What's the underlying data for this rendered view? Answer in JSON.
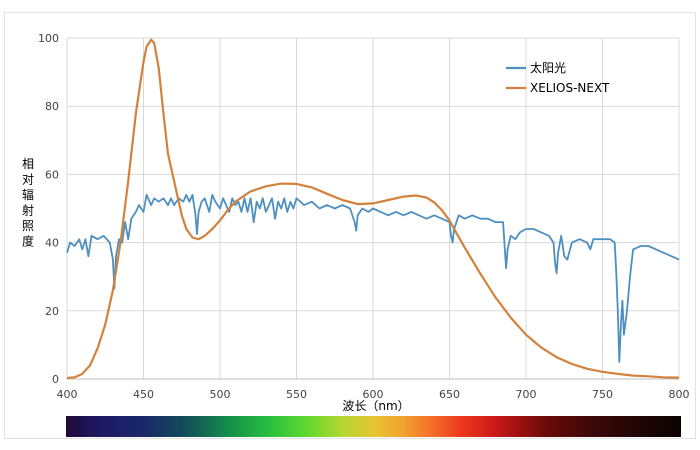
{
  "chart_data": {
    "type": "line",
    "xlabel": "波长（nm）",
    "ylabel": "相对辐射照度",
    "xlim": [
      400,
      800
    ],
    "ylim": [
      0,
      100
    ],
    "x_ticks": [
      "400",
      "450",
      "500",
      "550",
      "600",
      "650",
      "700",
      "750",
      "800"
    ],
    "y_ticks": [
      "0",
      "20",
      "40",
      "60",
      "80",
      "100"
    ],
    "grid": true,
    "legend_position": "top-right",
    "series": [
      {
        "name": "太阳光",
        "color": "#4e8fc0",
        "points": [
          [
            400,
            37
          ],
          [
            402,
            40
          ],
          [
            405,
            39
          ],
          [
            408,
            41
          ],
          [
            410,
            38
          ],
          [
            412,
            41
          ],
          [
            414,
            36
          ],
          [
            416,
            42
          ],
          [
            420,
            41
          ],
          [
            424,
            42
          ],
          [
            428,
            40
          ],
          [
            430,
            35
          ],
          [
            431,
            26.5
          ],
          [
            432,
            36
          ],
          [
            434,
            41
          ],
          [
            436,
            40
          ],
          [
            438,
            46
          ],
          [
            440,
            41
          ],
          [
            442,
            47
          ],
          [
            445,
            49
          ],
          [
            447,
            51
          ],
          [
            450,
            49
          ],
          [
            452,
            54
          ],
          [
            455,
            51
          ],
          [
            457,
            53
          ],
          [
            460,
            52
          ],
          [
            463,
            53
          ],
          [
            466,
            51
          ],
          [
            468,
            53
          ],
          [
            470,
            51
          ],
          [
            473,
            53
          ],
          [
            476,
            52
          ],
          [
            478,
            54
          ],
          [
            480,
            52
          ],
          [
            482,
            54
          ],
          [
            484,
            48
          ],
          [
            485,
            42.5
          ],
          [
            486,
            49
          ],
          [
            488,
            52
          ],
          [
            490,
            53
          ],
          [
            493,
            49
          ],
          [
            495,
            54
          ],
          [
            497,
            52
          ],
          [
            500,
            50
          ],
          [
            502,
            53
          ],
          [
            504,
            51
          ],
          [
            506,
            49
          ],
          [
            508,
            53
          ],
          [
            510,
            51
          ],
          [
            512,
            52
          ],
          [
            514,
            49
          ],
          [
            516,
            53
          ],
          [
            518,
            49
          ],
          [
            520,
            53
          ],
          [
            522,
            46
          ],
          [
            524,
            52
          ],
          [
            526,
            50
          ],
          [
            528,
            53
          ],
          [
            530,
            49
          ],
          [
            532,
            51
          ],
          [
            534,
            53
          ],
          [
            536,
            47
          ],
          [
            538,
            52
          ],
          [
            540,
            50
          ],
          [
            542,
            53
          ],
          [
            544,
            49
          ],
          [
            546,
            52
          ],
          [
            548,
            50
          ],
          [
            550,
            53
          ],
          [
            555,
            51
          ],
          [
            560,
            52
          ],
          [
            565,
            50
          ],
          [
            570,
            51
          ],
          [
            575,
            50
          ],
          [
            580,
            51
          ],
          [
            585,
            50
          ],
          [
            588,
            46
          ],
          [
            589,
            43.5
          ],
          [
            590,
            48
          ],
          [
            593,
            50
          ],
          [
            597,
            49
          ],
          [
            600,
            50
          ],
          [
            605,
            49
          ],
          [
            610,
            48
          ],
          [
            615,
            49
          ],
          [
            620,
            48
          ],
          [
            625,
            49
          ],
          [
            630,
            48
          ],
          [
            635,
            47
          ],
          [
            640,
            48
          ],
          [
            645,
            47
          ],
          [
            650,
            46
          ],
          [
            651,
            42
          ],
          [
            652,
            40
          ],
          [
            653,
            44
          ],
          [
            656,
            48
          ],
          [
            660,
            47
          ],
          [
            665,
            48
          ],
          [
            670,
            47
          ],
          [
            675,
            47
          ],
          [
            680,
            46
          ],
          [
            685,
            46
          ],
          [
            686,
            39
          ],
          [
            687,
            32.5
          ],
          [
            688,
            38
          ],
          [
            690,
            42
          ],
          [
            693,
            41
          ],
          [
            696,
            43
          ],
          [
            700,
            44
          ],
          [
            705,
            44
          ],
          [
            710,
            43
          ],
          [
            715,
            42
          ],
          [
            718,
            40
          ],
          [
            719,
            34
          ],
          [
            720,
            31
          ],
          [
            721,
            37
          ],
          [
            723,
            42
          ],
          [
            725,
            36
          ],
          [
            727,
            35
          ],
          [
            730,
            40
          ],
          [
            735,
            41
          ],
          [
            740,
            40
          ],
          [
            742,
            38
          ],
          [
            744,
            41
          ],
          [
            750,
            41
          ],
          [
            755,
            41
          ],
          [
            758,
            40
          ],
          [
            759,
            31
          ],
          [
            760,
            20
          ],
          [
            761,
            5
          ],
          [
            762,
            16
          ],
          [
            763,
            23
          ],
          [
            764,
            13
          ],
          [
            766,
            20
          ],
          [
            768,
            30
          ],
          [
            770,
            38
          ],
          [
            775,
            39
          ],
          [
            780,
            39
          ],
          [
            785,
            38
          ],
          [
            790,
            37
          ],
          [
            795,
            36
          ],
          [
            800,
            35
          ]
        ]
      },
      {
        "name": "XELIOS-NEXT",
        "color": "#d2823c",
        "points": [
          [
            400,
            0.3
          ],
          [
            405,
            0.5
          ],
          [
            410,
            1.5
          ],
          [
            415,
            4
          ],
          [
            420,
            9
          ],
          [
            425,
            16
          ],
          [
            430,
            26
          ],
          [
            435,
            40
          ],
          [
            440,
            58
          ],
          [
            445,
            78
          ],
          [
            450,
            93
          ],
          [
            452,
            97.5
          ],
          [
            455,
            99.5
          ],
          [
            457,
            98.5
          ],
          [
            460,
            91
          ],
          [
            463,
            78
          ],
          [
            466,
            66
          ],
          [
            469,
            60
          ],
          [
            472,
            54
          ],
          [
            475,
            48
          ],
          [
            478,
            44
          ],
          [
            482,
            41.5
          ],
          [
            486,
            41
          ],
          [
            490,
            42
          ],
          [
            495,
            44
          ],
          [
            500,
            46.5
          ],
          [
            505,
            49.5
          ],
          [
            510,
            52
          ],
          [
            520,
            55
          ],
          [
            530,
            56.5
          ],
          [
            540,
            57.3
          ],
          [
            550,
            57.2
          ],
          [
            560,
            56.2
          ],
          [
            570,
            54.3
          ],
          [
            580,
            52.5
          ],
          [
            590,
            51.3
          ],
          [
            600,
            51.5
          ],
          [
            610,
            52.5
          ],
          [
            620,
            53.5
          ],
          [
            628,
            53.8
          ],
          [
            635,
            53.2
          ],
          [
            640,
            51.8
          ],
          [
            645,
            49.5
          ],
          [
            650,
            46.5
          ],
          [
            655,
            42.5
          ],
          [
            660,
            38.5
          ],
          [
            670,
            31
          ],
          [
            680,
            24
          ],
          [
            690,
            18
          ],
          [
            700,
            13
          ],
          [
            710,
            9.2
          ],
          [
            720,
            6.4
          ],
          [
            730,
            4.4
          ],
          [
            740,
            3
          ],
          [
            750,
            2.1
          ],
          [
            760,
            1.5
          ],
          [
            770,
            1
          ],
          [
            780,
            0.8
          ],
          [
            790,
            0.5
          ],
          [
            800,
            0.4
          ]
        ]
      }
    ],
    "spectrum_bar": {
      "stops": [
        {
          "offset": 0.0,
          "color": "#200a3a"
        },
        {
          "offset": 0.06,
          "color": "#1e1a66"
        },
        {
          "offset": 0.12,
          "color": "#18266a"
        },
        {
          "offset": 0.19,
          "color": "#124a5a"
        },
        {
          "offset": 0.26,
          "color": "#148a4a"
        },
        {
          "offset": 0.33,
          "color": "#28c040"
        },
        {
          "offset": 0.39,
          "color": "#5ed82e"
        },
        {
          "offset": 0.45,
          "color": "#b6d630"
        },
        {
          "offset": 0.5,
          "color": "#e6c432"
        },
        {
          "offset": 0.55,
          "color": "#f2a030"
        },
        {
          "offset": 0.6,
          "color": "#f26a28"
        },
        {
          "offset": 0.64,
          "color": "#ee3a1e"
        },
        {
          "offset": 0.7,
          "color": "#c81818"
        },
        {
          "offset": 0.78,
          "color": "#6a0a0a"
        },
        {
          "offset": 0.86,
          "color": "#3a0808"
        },
        {
          "offset": 0.93,
          "color": "#200606"
        },
        {
          "offset": 1.0,
          "color": "#0a0202"
        }
      ]
    }
  }
}
